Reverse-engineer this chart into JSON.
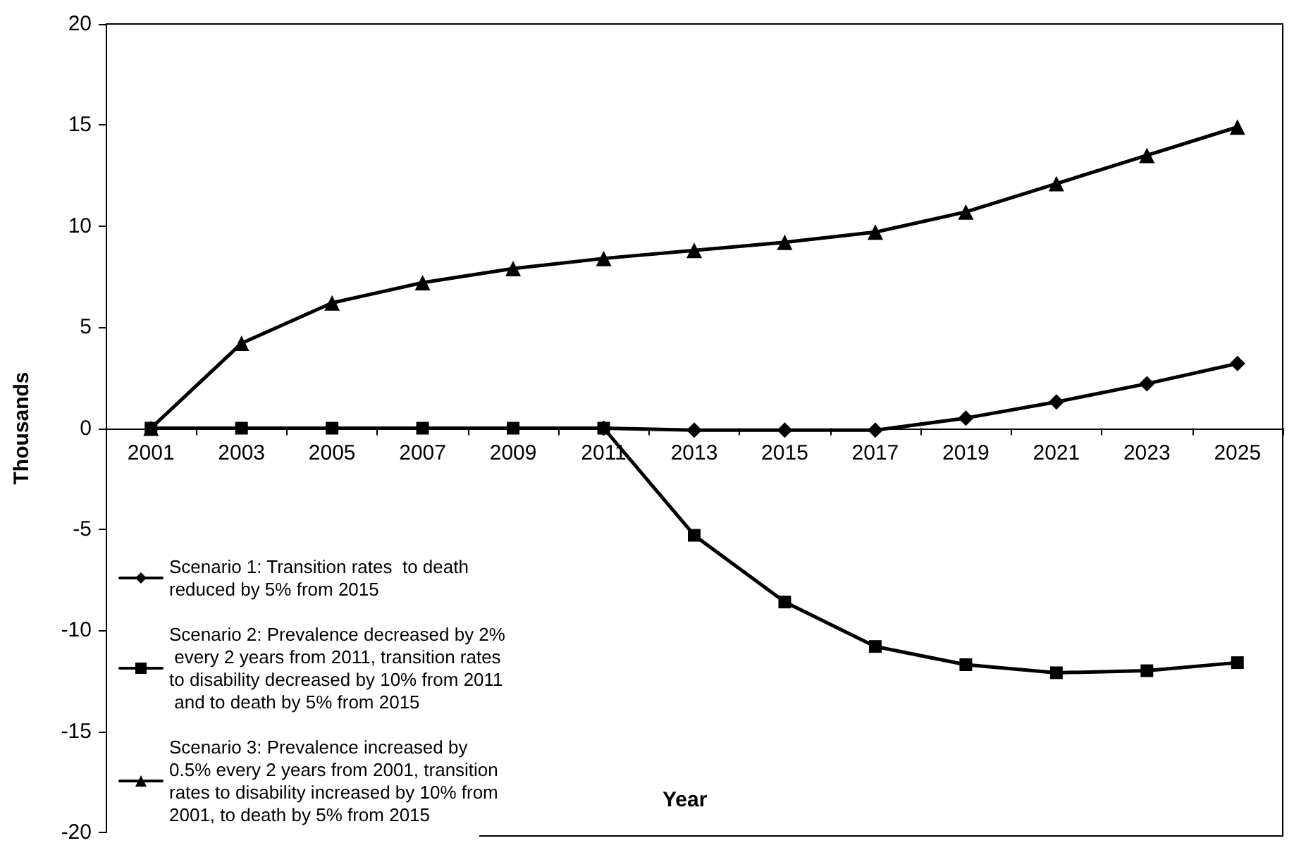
{
  "chart_data": {
    "type": "line",
    "xlabel": "Year",
    "ylabel": "Thousands",
    "categories": [
      "2001",
      "2003",
      "2005",
      "2007",
      "2009",
      "2011",
      "2013",
      "2015",
      "2017",
      "2019",
      "2021",
      "2023",
      "2025"
    ],
    "series": [
      {
        "name": "Scenario 1: Transition rates  to death reduced by 5% from 2015",
        "color": "#000000",
        "marker": "diamond",
        "values": [
          null,
          null,
          null,
          null,
          null,
          0,
          -0.1,
          -0.1,
          -0.1,
          0.5,
          1.3,
          2.2,
          3.2
        ]
      },
      {
        "name": "Scenario 2: Prevalence decreased by 2% every 2 years from 2011, transition rates to disability decreased by 10% from 2011 and to death by 5% from 2015",
        "color": "#000000",
        "marker": "square",
        "values": [
          0,
          0,
          0,
          0,
          0,
          0,
          -5.3,
          -8.6,
          -10.8,
          -11.7,
          -12.1,
          -12.0,
          -11.6
        ]
      },
      {
        "name": "Scenario 3: Prevalence increased by 0.5% every 2 years from 2001, transition rates to disability increased by 10% from 2001, to death by 5% from 2015",
        "color": "#000000",
        "marker": "triangle",
        "values": [
          0,
          4.2,
          6.2,
          7.2,
          7.9,
          8.4,
          8.8,
          9.2,
          9.7,
          10.7,
          12.1,
          13.5,
          14.9
        ]
      }
    ],
    "ylim": [
      -20,
      20
    ],
    "yticks": [
      -20,
      -15,
      -10,
      -5,
      0,
      5,
      10,
      15,
      20
    ],
    "grid": false,
    "legend": "bottom left",
    "line_style": "solid"
  }
}
